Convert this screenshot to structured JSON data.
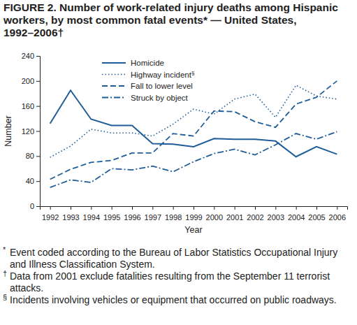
{
  "chart_data": {
    "type": "line",
    "title": "FIGURE 2. Number of work-related injury deaths among Hispanic workers, by most common fatal events* — United States, 1992–2006†",
    "x_label": "Year",
    "y_label": "Number",
    "x": [
      1992,
      1993,
      1994,
      1995,
      1996,
      1997,
      1998,
      1999,
      2000,
      2001,
      2002,
      2003,
      2004,
      2005,
      2006
    ],
    "series": [
      {
        "name": "Homicide",
        "color": "#1f5d99",
        "line_style": "solid",
        "values": [
          132,
          185,
          139,
          129,
          129,
          100,
          99,
          95,
          108,
          107,
          107,
          104,
          79,
          95,
          83
        ]
      },
      {
        "name": "Highway incident§",
        "color": "#1f5d99",
        "line_style": "dotted",
        "values": [
          78,
          96,
          123,
          117,
          117,
          112,
          131,
          155,
          147,
          171,
          179,
          142,
          193,
          176,
          171
        ]
      },
      {
        "name": "Fall to lower level",
        "color": "#1f5d99",
        "line_style": "dashed",
        "values": [
          43,
          59,
          70,
          73,
          85,
          85,
          116,
          112,
          152,
          151,
          135,
          126,
          163,
          174,
          200
        ]
      },
      {
        "name": "Struck by object",
        "color": "#1f5d99",
        "line_style": "dashdot",
        "values": [
          30,
          42,
          38,
          60,
          58,
          64,
          55,
          71,
          84,
          91,
          82,
          98,
          116,
          107,
          119
        ]
      }
    ],
    "xlim": [
      1991.5,
      2006.5
    ],
    "xticks": [
      1992,
      1993,
      1994,
      1995,
      1996,
      1997,
      1998,
      1999,
      2000,
      2001,
      2002,
      2003,
      2004,
      2005,
      2006
    ],
    "ylim": [
      0,
      240
    ],
    "yticks": [
      0,
      40,
      80,
      120,
      160,
      200,
      240
    ],
    "grid": false,
    "legend": "upper left",
    "annotations": [
      "* Event coded according to the Bureau of Labor Statistics Occupational Injury and Illness Classification System.",
      "† Data from 2001 exclude fatalities resulting from the September 11 terrorist attacks.",
      "§ Incidents involving vehicles or equipment that occurred on public roadways."
    ]
  }
}
